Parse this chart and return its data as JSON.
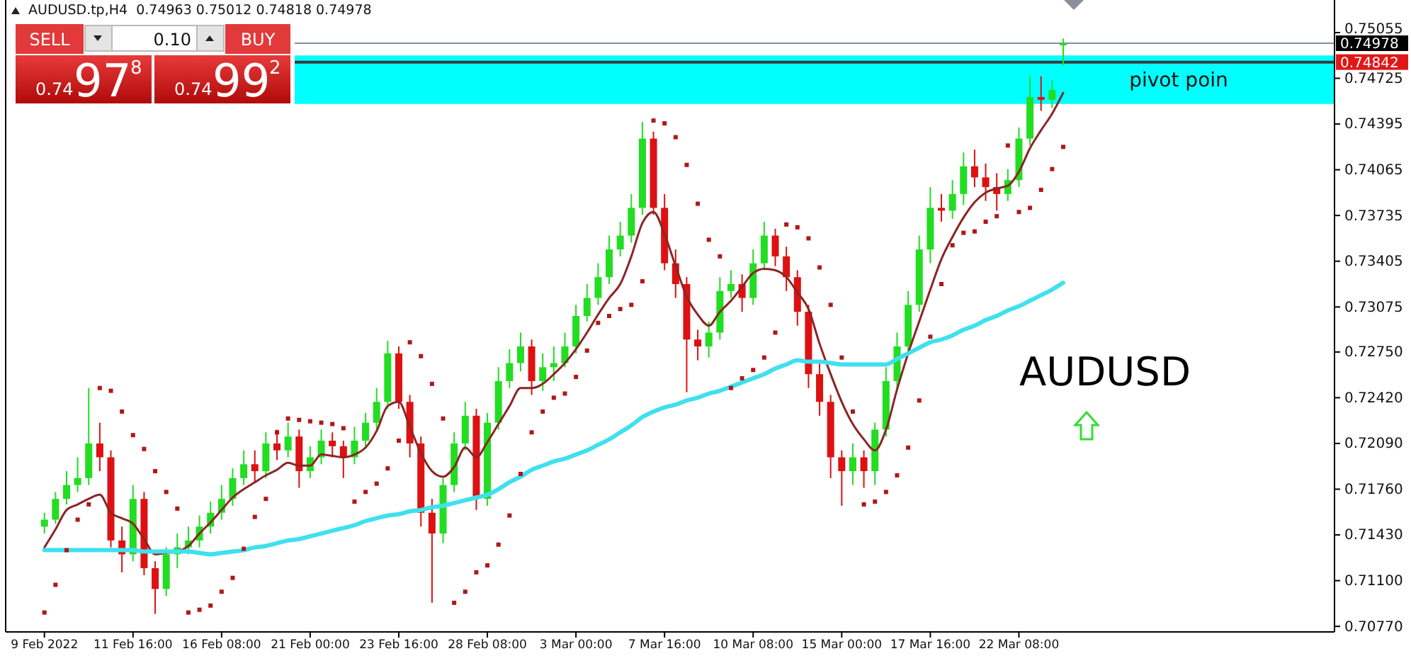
{
  "chart_data": {
    "type": "candlestick",
    "title": "AUDUSD.tp,H4  0.74963 0.75012 0.74818 0.74978",
    "categories": [
      null,
      null,
      null,
      "9 Feb 2022",
      null,
      null,
      null,
      null,
      null,
      null,
      null,
      "11 Feb 16:00",
      null,
      null,
      null,
      null,
      null,
      null,
      null,
      "16 Feb 08:00",
      null,
      null,
      null,
      null,
      null,
      null,
      null,
      "21 Feb 00:00",
      null,
      null,
      null,
      null,
      null,
      null,
      null,
      "23 Feb 16:00",
      null,
      null,
      null,
      null,
      null,
      null,
      null,
      "28 Feb 08:00",
      null,
      null,
      null,
      null,
      null,
      null,
      null,
      "3 Mar 00:00",
      null,
      null,
      null,
      null,
      null,
      null,
      null,
      "7 Mar 16:00",
      null,
      null,
      null,
      null,
      null,
      null,
      null,
      "10 Mar 08:00",
      null,
      null,
      null,
      null,
      null,
      null,
      null,
      "15 Mar 00:00",
      null,
      null,
      null,
      null,
      null,
      null,
      null,
      "17 Mar 16:00",
      null,
      null,
      null,
      null,
      null,
      null,
      null,
      "22 Mar 08:00",
      null,
      null,
      null,
      null,
      null,
      null,
      null,
      null,
      null,
      null,
      null,
      null,
      null,
      null,
      null,
      null,
      null,
      null,
      null,
      null,
      null,
      null,
      null,
      null,
      null,
      null,
      null,
      null
    ],
    "ylim": [
      0.7073,
      0.7529
    ],
    "yticks": [
      {
        "value": 0.75055,
        "label": "0.75055"
      },
      {
        "value": 0.74725,
        "label": "0.74725"
      },
      {
        "value": 0.74395,
        "label": "0.74395"
      },
      {
        "value": 0.74065,
        "label": "0.74065"
      },
      {
        "value": 0.73735,
        "label": "0.73735"
      },
      {
        "value": 0.73405,
        "label": "0.73405"
      },
      {
        "value": 0.73075,
        "label": "0.73075"
      },
      {
        "value": 0.7275,
        "label": "0.72750"
      },
      {
        "value": 0.7242,
        "label": "0.72420"
      },
      {
        "value": 0.7209,
        "label": "0.72090"
      },
      {
        "value": 0.7176,
        "label": "0.71760"
      },
      {
        "value": 0.7143,
        "label": "0.71430"
      },
      {
        "value": 0.711,
        "label": "0.71100"
      },
      {
        "value": 0.7077,
        "label": "0.70770"
      }
    ],
    "bands": [
      {
        "axis": "y",
        "from": 0.7454,
        "to": 0.7489,
        "label": "pivot poin",
        "color": "#00ffff"
      }
    ],
    "ref_lines": [
      {
        "axis": "y",
        "value": 0.74978,
        "label": "0.74978",
        "color": "#8090a0"
      },
      {
        "axis": "y",
        "value": 0.74842,
        "label": "0.74842",
        "color": "#3a3a3a"
      }
    ],
    "annotations": [
      "SELL",
      "0.10",
      "BUY",
      "0.74",
      "97",
      "8",
      "0.74",
      "99",
      "2",
      "AUDUSD"
    ],
    "series": [
      {
        "ohlc": [
          null,
          null,
          null,
          [
            0.7149,
            0.7159,
            0.7144,
            0.7154
          ],
          [
            0.7154,
            0.7174,
            0.7151,
            0.7169
          ],
          [
            0.7169,
            0.7189,
            0.7165,
            0.7179
          ],
          [
            0.7179,
            0.7199,
            0.7174,
            0.7184
          ],
          [
            0.7184,
            0.7249,
            0.7179,
            0.7209
          ],
          [
            0.7209,
            0.7224,
            0.7189,
            0.7199
          ],
          [
            0.7199,
            0.7204,
            0.7134,
            0.7139
          ],
          [
            0.7139,
            0.7149,
            0.7116,
            0.7129
          ],
          [
            0.7129,
            0.7179,
            0.7124,
            0.7169
          ],
          [
            0.7169,
            0.7174,
            0.7114,
            0.7119
          ],
          [
            0.7119,
            0.7124,
            0.7086,
            0.7104
          ],
          [
            0.7104,
            0.7134,
            0.7099,
            0.7129
          ],
          [
            0.7129,
            0.7144,
            0.7119,
            0.7134
          ],
          [
            0.7134,
            0.7149,
            0.7129,
            0.7139
          ],
          [
            0.7139,
            0.7157,
            0.7134,
            0.7149
          ],
          [
            0.7149,
            0.7167,
            0.7144,
            0.7159
          ],
          [
            0.7159,
            0.7179,
            0.7154,
            0.7169
          ],
          [
            0.7169,
            0.7191,
            0.7164,
            0.7184
          ],
          [
            0.7184,
            0.7204,
            0.7179,
            0.7194
          ],
          [
            0.7194,
            0.7204,
            0.7181,
            0.7189
          ],
          [
            0.7189,
            0.7217,
            0.7184,
            0.7209
          ],
          [
            0.7209,
            0.7219,
            0.7197,
            0.7204
          ],
          [
            0.7204,
            0.7224,
            0.7199,
            0.7214
          ],
          [
            0.7214,
            0.7219,
            0.7177,
            0.7189
          ],
          [
            0.7189,
            0.7207,
            0.7184,
            0.7199
          ],
          [
            0.7199,
            0.7219,
            0.7194,
            0.7211
          ],
          [
            0.7211,
            0.7217,
            0.7199,
            0.7207
          ],
          [
            0.7207,
            0.7211,
            0.7184,
            0.7199
          ],
          [
            0.7199,
            0.7221,
            0.7194,
            0.7211
          ],
          [
            0.7211,
            0.7231,
            0.7207,
            0.7224
          ],
          [
            0.7224,
            0.7249,
            0.7219,
            0.7239
          ],
          [
            0.7239,
            0.7283,
            0.7234,
            0.7274
          ],
          [
            0.7274,
            0.7279,
            0.7234,
            0.7239
          ],
          [
            0.7239,
            0.7244,
            0.7199,
            0.7209
          ],
          [
            0.7209,
            0.7214,
            0.7149,
            0.7159
          ],
          [
            0.7159,
            0.7169,
            0.7094,
            0.7144
          ],
          [
            0.7144,
            0.7184,
            0.7137,
            0.7179
          ],
          [
            0.7179,
            0.7217,
            0.7174,
            0.7209
          ],
          [
            0.7209,
            0.7239,
            0.7204,
            0.7229
          ],
          [
            0.7229,
            0.7234,
            0.7161,
            0.7169
          ],
          [
            0.7169,
            0.7231,
            0.7164,
            0.7224
          ],
          [
            0.7224,
            0.7264,
            0.7219,
            0.7254
          ],
          [
            0.7254,
            0.7277,
            0.7249,
            0.7267
          ],
          [
            0.7267,
            0.7289,
            0.7261,
            0.7279
          ],
          [
            0.7279,
            0.7284,
            0.7244,
            0.7254
          ],
          [
            0.7254,
            0.7274,
            0.7247,
            0.7264
          ],
          [
            0.7264,
            0.7279,
            0.7254,
            0.7267
          ],
          [
            0.7267,
            0.7289,
            0.7264,
            0.7279
          ],
          [
            0.7279,
            0.7309,
            0.7274,
            0.7301
          ],
          [
            0.7301,
            0.7324,
            0.7297,
            0.7314
          ],
          [
            0.7314,
            0.7339,
            0.7309,
            0.7329
          ],
          [
            0.7329,
            0.7359,
            0.7324,
            0.7349
          ],
          [
            0.7349,
            0.7369,
            0.7344,
            0.7359
          ],
          [
            0.7359,
            0.7389,
            0.7354,
            0.7379
          ],
          [
            0.7379,
            0.7441,
            0.7374,
            0.7429
          ],
          [
            0.7429,
            0.7434,
            0.7374,
            0.7379
          ],
          [
            0.7379,
            0.7389,
            0.7334,
            0.7339
          ],
          [
            0.7339,
            0.7349,
            0.7314,
            0.7324
          ],
          [
            0.7324,
            0.7329,
            0.7246,
            0.7284
          ],
          [
            0.7284,
            0.7291,
            0.7269,
            0.7279
          ],
          [
            0.7279,
            0.7297,
            0.7271,
            0.7289
          ],
          [
            0.7289,
            0.7329,
            0.7284,
            0.7319
          ],
          [
            0.7319,
            0.7334,
            0.7314,
            0.7324
          ],
          [
            0.7324,
            0.7331,
            0.7304,
            0.7314
          ],
          [
            0.7314,
            0.7349,
            0.7309,
            0.7339
          ],
          [
            0.7339,
            0.7369,
            0.7334,
            0.7359
          ],
          [
            0.7359,
            0.7364,
            0.7337,
            0.7344
          ],
          [
            0.7344,
            0.7351,
            0.7319,
            0.7329
          ],
          [
            0.7329,
            0.7334,
            0.7294,
            0.7304
          ],
          [
            0.7304,
            0.7309,
            0.7249,
            0.7259
          ],
          [
            0.7259,
            0.7267,
            0.7229,
            0.7239
          ],
          [
            0.7239,
            0.7244,
            0.7184,
            0.7199
          ],
          [
            0.7199,
            0.7204,
            0.7164,
            0.7189
          ],
          [
            0.7189,
            0.7209,
            0.7179,
            0.7199
          ],
          [
            0.7199,
            0.7204,
            0.7177,
            0.7189
          ],
          [
            0.7189,
            0.7224,
            0.7179,
            0.7219
          ],
          [
            0.7219,
            0.7264,
            0.7214,
            0.7254
          ],
          [
            0.7254,
            0.7289,
            0.7249,
            0.7279
          ],
          [
            0.7279,
            0.7319,
            0.7274,
            0.7309
          ],
          [
            0.7309,
            0.7359,
            0.7304,
            0.7349
          ],
          [
            0.7349,
            0.7394,
            0.7339,
            0.7379
          ],
          [
            0.7379,
            0.7389,
            0.7369,
            0.7377
          ],
          [
            0.7377,
            0.7399,
            0.7371,
            0.7389
          ],
          [
            0.7389,
            0.7419,
            0.7381,
            0.7409
          ],
          [
            0.7409,
            0.7421,
            0.7394,
            0.7401
          ],
          [
            0.7401,
            0.7411,
            0.7384,
            0.7394
          ],
          [
            0.7394,
            0.7404,
            0.7377,
            0.7389
          ],
          [
            0.7389,
            0.7407,
            0.7384,
            0.7399
          ],
          [
            0.7399,
            0.7437,
            0.7394,
            0.7429
          ],
          [
            0.7429,
            0.7474,
            0.7424,
            0.7459
          ],
          [
            0.7459,
            0.7474,
            0.7449,
            0.7457
          ],
          [
            0.7457,
            0.7471,
            0.7451,
            0.7464
          ],
          [
            0.74963,
            0.75012,
            0.74818,
            0.74978
          ],
          null,
          null,
          null,
          null,
          null,
          null,
          null,
          null,
          null,
          null,
          null,
          null,
          null,
          null,
          null,
          null,
          null,
          null,
          null,
          null,
          null,
          null,
          null,
          null
        ]
      },
      {
        "type": "line",
        "color": "#8b2525",
        "values": [
          null,
          null,
          null,
          0.7134,
          0.7147,
          0.7161,
          0.7165,
          0.7169,
          0.7172,
          0.7159,
          0.7155,
          0.7151,
          0.714,
          0.7129,
          0.713,
          0.7131,
          0.7135,
          0.7144,
          0.7152,
          0.7161,
          0.717,
          0.7176,
          0.7181,
          0.7186,
          0.719,
          0.7195,
          0.7193,
          0.7193,
          0.7201,
          0.72,
          0.7199,
          0.7201,
          0.7206,
          0.7218,
          0.7236,
          0.7239,
          0.7221,
          0.7202,
          0.7189,
          0.7185,
          0.7192,
          0.7206,
          0.7199,
          0.721,
          0.7223,
          0.7236,
          0.7249,
          0.7249,
          0.7252,
          0.7259,
          0.7267,
          0.7277,
          0.7289,
          0.7302,
          0.7314,
          0.7324,
          0.7344,
          0.7368,
          0.7376,
          0.736,
          0.7337,
          0.7315,
          0.7302,
          0.7294,
          0.7304,
          0.7312,
          0.7322,
          0.7332,
          0.7335,
          0.7334,
          0.7329,
          0.7318,
          0.7306,
          0.7281,
          0.7259,
          0.7239,
          0.7223,
          0.7212,
          0.7204,
          0.7219,
          0.7248,
          0.7274,
          0.7297,
          0.732,
          0.7342,
          0.7358,
          0.7372,
          0.7383,
          0.739,
          0.7393,
          0.7395,
          0.7405,
          0.7422,
          0.7435,
          0.7447,
          0.7462,
          null,
          null,
          null,
          null,
          null,
          null,
          null,
          null,
          null,
          null,
          null,
          null,
          null,
          null,
          null,
          null,
          null,
          null,
          null,
          null,
          null,
          null,
          null,
          null
        ]
      },
      {
        "type": "line",
        "color": "#40e0ee",
        "values": [
          null,
          null,
          null,
          0.7132,
          0.7132,
          0.7132,
          0.7132,
          0.7132,
          0.7132,
          0.7132,
          0.7132,
          0.7132,
          0.7131,
          0.7131,
          0.7131,
          0.7131,
          0.7131,
          0.713,
          0.7129,
          0.713,
          0.7131,
          0.7132,
          0.7134,
          0.7135,
          0.7137,
          0.7139,
          0.714,
          0.7142,
          0.7144,
          0.7146,
          0.7148,
          0.715,
          0.7153,
          0.7155,
          0.7157,
          0.7158,
          0.716,
          0.7161,
          0.7163,
          0.7164,
          0.7166,
          0.7168,
          0.717,
          0.7172,
          0.7176,
          0.7181,
          0.7185,
          0.719,
          0.7193,
          0.7196,
          0.7198,
          0.7201,
          0.7204,
          0.7208,
          0.7212,
          0.7217,
          0.7222,
          0.7228,
          0.7232,
          0.7235,
          0.7237,
          0.724,
          0.7242,
          0.7245,
          0.7247,
          0.725,
          0.7253,
          0.7256,
          0.7259,
          0.7263,
          0.7266,
          0.7269,
          0.7268,
          0.7268,
          0.7267,
          0.7266,
          0.7266,
          0.7266,
          0.7266,
          0.7266,
          0.727,
          0.7274,
          0.7278,
          0.7282,
          0.7284,
          0.7287,
          0.7291,
          0.7294,
          0.7298,
          0.7301,
          0.7305,
          0.7308,
          0.7312,
          0.7316,
          0.732,
          0.7325,
          null,
          null,
          null,
          null,
          null,
          null,
          null,
          null,
          null,
          null,
          null,
          null,
          null,
          null,
          null,
          null,
          null,
          null,
          null,
          null,
          null,
          null,
          null,
          null
        ]
      },
      {
        "type": "scatter",
        "color": "#b01818",
        "marker": "square",
        "values": [
          null,
          null,
          null,
          0.7087,
          0.7107,
          0.7132,
          0.7154,
          0.7165,
          0.7249,
          0.7247,
          0.7232,
          0.7215,
          0.7205,
          0.7189,
          0.7174,
          0.7162,
          0.7087,
          0.7089,
          0.7092,
          0.7102,
          0.7112,
          0.7133,
          0.7156,
          0.7169,
          0.7217,
          0.7227,
          0.7226,
          0.7225,
          0.7224,
          0.7223,
          0.722,
          0.7167,
          0.7174,
          0.718,
          0.7191,
          0.7211,
          0.7282,
          0.7272,
          0.7252,
          0.7227,
          0.7094,
          0.7102,
          0.7116,
          0.7121,
          0.7136,
          0.7157,
          0.7187,
          0.7217,
          0.7232,
          0.7242,
          0.7245,
          0.7257,
          0.7276,
          0.7296,
          0.7301,
          0.7306,
          0.7309,
          0.7326,
          0.7442,
          0.744,
          0.743,
          0.741,
          0.7382,
          0.7356,
          0.7344,
          0.7249,
          0.7256,
          0.7262,
          0.7271,
          0.7289,
          0.7367,
          0.7365,
          0.7357,
          0.7336,
          0.7309,
          0.7271,
          0.7232,
          0.7165,
          0.7167,
          0.7174,
          0.7186,
          0.7206,
          0.724,
          0.7286,
          0.7324,
          0.7352,
          0.7361,
          0.7362,
          0.7369,
          0.7373,
          0.7424,
          0.7376,
          0.7379,
          0.7392,
          0.7407,
          0.7423,
          null,
          null,
          null,
          null,
          null,
          null,
          null,
          null,
          null,
          null,
          null,
          null,
          null,
          null,
          null,
          null,
          null,
          null,
          null,
          null,
          null,
          null,
          null,
          null
        ]
      }
    ]
  }
}
